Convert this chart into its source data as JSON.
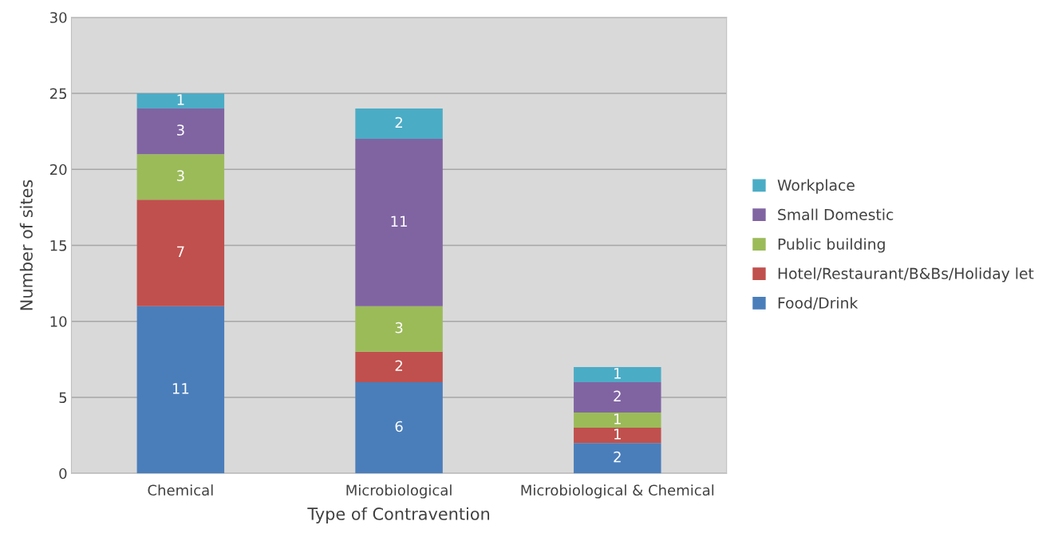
{
  "chart_data": {
    "type": "bar",
    "stacked": true,
    "xlabel": "Type of Contravention",
    "ylabel": "Number of sites",
    "categories": [
      "Chemical",
      "Microbiological",
      "Microbiological & Chemical"
    ],
    "series": [
      {
        "name": "Food/Drink",
        "color": "#4a7ebb",
        "values": [
          11,
          6,
          2
        ]
      },
      {
        "name": "Hotel/Restaurant/B&Bs/Holiday let",
        "color": "#c0504d",
        "values": [
          7,
          2,
          1
        ]
      },
      {
        "name": "Public building",
        "color": "#9bbb59",
        "values": [
          3,
          3,
          1
        ]
      },
      {
        "name": "Small Domestic",
        "color": "#8064a2",
        "values": [
          3,
          11,
          2
        ]
      },
      {
        "name": "Workplace",
        "color": "#4bacc6",
        "values": [
          1,
          2,
          1
        ]
      }
    ],
    "ylim": [
      0,
      30
    ],
    "yticks": [
      0,
      5,
      10,
      15,
      20,
      25,
      30
    ],
    "grid": "y",
    "legend": "right",
    "data_labels": true
  }
}
